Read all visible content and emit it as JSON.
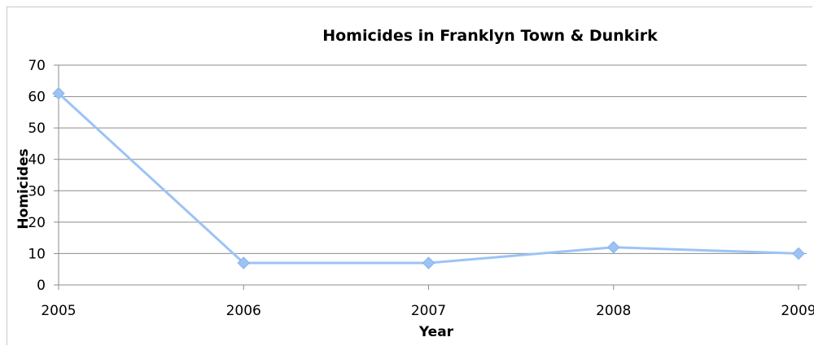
{
  "chart_data": {
    "type": "line",
    "title": "Homicides in Franklyn Town & Dunkirk",
    "xlabel": "Year",
    "ylabel": "Homicides",
    "x": [
      "2005",
      "2006",
      "2007",
      "2008",
      "2009"
    ],
    "series": [
      {
        "values": [
          61,
          7,
          7,
          12,
          10
        ]
      }
    ],
    "ylim": [
      0,
      70
    ],
    "yticks": [
      0,
      10,
      20,
      30,
      40,
      50,
      60,
      70
    ],
    "grid": true,
    "legend": "none",
    "colors": {
      "line": "#9DC3F5",
      "marker": "#9DC3F5",
      "grid": "#8c8c8c",
      "axis": "#8c8c8c"
    }
  }
}
